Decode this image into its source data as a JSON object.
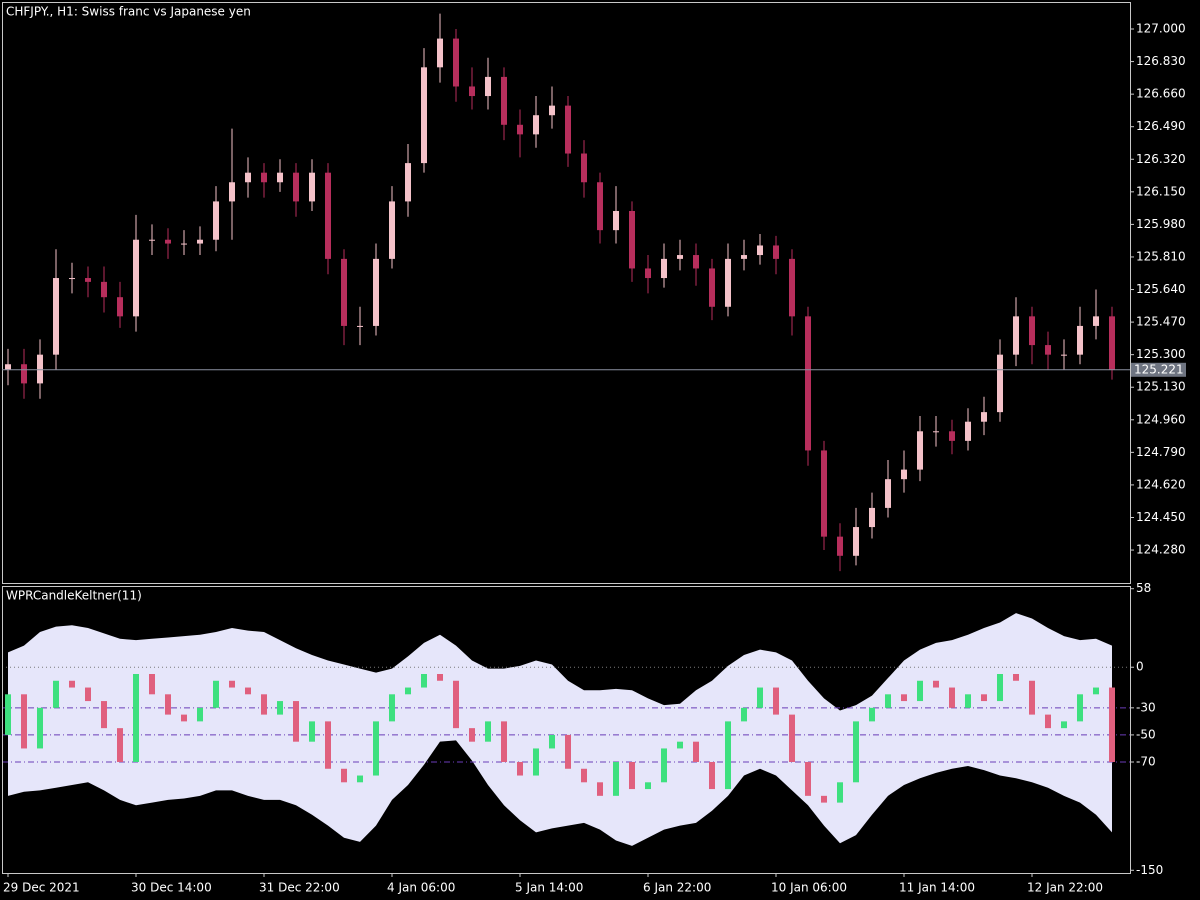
{
  "chart_data": [
    {
      "type": "candlestick",
      "title": "CHFJPY., H1:  Swiss franc vs Japanese yen",
      "up_color": "#f4c2c9",
      "down_color": "#b72e5c",
      "open": [
        125.22,
        125.25,
        125.15,
        125.3,
        125.7,
        125.7,
        125.68,
        125.6,
        125.5,
        125.9,
        125.9,
        125.88,
        125.88,
        125.9,
        126.1,
        126.2,
        126.25,
        126.2,
        126.25,
        126.1,
        126.25,
        125.8,
        125.45,
        125.45,
        125.8,
        126.1,
        126.3,
        126.8,
        126.95,
        126.7,
        126.65,
        126.75,
        126.5,
        126.45,
        126.55,
        126.6,
        126.35,
        126.2,
        125.95,
        126.05,
        125.75,
        125.7,
        125.8,
        125.82,
        125.75,
        125.55,
        125.8,
        125.82,
        125.87,
        125.8,
        125.5,
        124.8,
        124.35,
        124.25,
        124.4,
        124.5,
        124.65,
        124.7,
        124.9,
        124.9,
        124.85,
        124.95,
        125.0,
        125.3,
        125.5,
        125.35,
        125.3,
        125.3,
        125.45,
        125.5
      ],
      "high": [
        125.33,
        125.33,
        125.38,
        125.85,
        125.78,
        125.76,
        125.76,
        125.68,
        126.03,
        125.98,
        125.96,
        125.95,
        125.97,
        126.18,
        126.48,
        126.33,
        126.3,
        126.32,
        126.3,
        126.32,
        126.3,
        125.85,
        125.55,
        125.88,
        126.18,
        126.4,
        126.9,
        127.08,
        127.0,
        126.8,
        126.85,
        126.8,
        126.58,
        126.65,
        126.7,
        126.65,
        126.42,
        126.25,
        126.18,
        126.1,
        125.82,
        125.88,
        125.9,
        125.88,
        125.8,
        125.88,
        125.9,
        125.93,
        125.92,
        125.85,
        125.55,
        124.85,
        124.42,
        124.5,
        124.58,
        124.75,
        124.8,
        124.98,
        124.98,
        124.96,
        125.02,
        125.08,
        125.38,
        125.6,
        125.55,
        125.42,
        125.38,
        125.55,
        125.64,
        125.55
      ],
      "low": [
        125.14,
        125.07,
        125.07,
        125.22,
        125.62,
        125.6,
        125.52,
        125.44,
        125.42,
        125.82,
        125.8,
        125.82,
        125.82,
        125.84,
        125.9,
        126.12,
        126.12,
        126.15,
        126.02,
        126.05,
        125.72,
        125.35,
        125.35,
        125.4,
        125.75,
        126.02,
        126.25,
        126.72,
        126.62,
        126.58,
        126.58,
        126.42,
        126.33,
        126.38,
        126.48,
        126.28,
        126.12,
        125.88,
        125.88,
        125.68,
        125.62,
        125.65,
        125.74,
        125.66,
        125.48,
        125.5,
        125.74,
        125.77,
        125.72,
        125.4,
        124.72,
        124.28,
        124.17,
        124.2,
        124.34,
        124.45,
        124.58,
        124.64,
        124.82,
        124.78,
        124.8,
        124.88,
        124.95,
        125.24,
        125.25,
        125.22,
        125.22,
        125.25,
        125.38,
        125.17
      ],
      "close": [
        125.25,
        125.15,
        125.3,
        125.7,
        125.7,
        125.68,
        125.6,
        125.5,
        125.9,
        125.9,
        125.88,
        125.88,
        125.9,
        126.1,
        126.2,
        126.25,
        126.2,
        126.25,
        126.1,
        126.25,
        125.8,
        125.45,
        125.45,
        125.8,
        126.1,
        126.3,
        126.8,
        126.95,
        126.7,
        126.65,
        126.75,
        126.5,
        126.45,
        126.55,
        126.6,
        126.35,
        126.2,
        125.95,
        126.05,
        125.75,
        125.7,
        125.8,
        125.82,
        125.75,
        125.55,
        125.8,
        125.82,
        125.87,
        125.8,
        125.5,
        124.8,
        124.35,
        124.25,
        124.4,
        124.5,
        124.65,
        124.7,
        124.9,
        124.9,
        124.85,
        124.95,
        125.0,
        125.3,
        125.5,
        125.35,
        125.3,
        125.3,
        125.45,
        125.5,
        125.22
      ],
      "last_price": 125.221,
      "ylim": [
        124.108,
        127.141
      ],
      "yticks": [
        {
          "value": 127,
          "label": "127.000"
        },
        {
          "value": 126.83,
          "label": "126.830"
        },
        {
          "value": 126.66,
          "label": "126.660"
        },
        {
          "value": 126.49,
          "label": "126.490"
        },
        {
          "value": 126.32,
          "label": "126.320"
        },
        {
          "value": 126.15,
          "label": "126.150"
        },
        {
          "value": 125.98,
          "label": "125.980"
        },
        {
          "value": 125.81,
          "label": "125.810"
        },
        {
          "value": 125.64,
          "label": "125.640"
        },
        {
          "value": 125.47,
          "label": "125.470"
        },
        {
          "value": 125.3,
          "label": "125.300"
        },
        {
          "value": 125.13,
          "label": "125.130"
        },
        {
          "value": 124.96,
          "label": "124.960"
        },
        {
          "value": 124.79,
          "label": "124.790"
        },
        {
          "value": 124.62,
          "label": "124.620"
        },
        {
          "value": 124.45,
          "label": "124.450"
        },
        {
          "value": 124.28,
          "label": "124.280"
        }
      ],
      "xticks": [
        {
          "value": 0,
          "label": "29 Dec 2021"
        },
        {
          "value": 8,
          "label": "30 Dec 14:00"
        },
        {
          "value": 16,
          "label": "31 Dec 22:00"
        },
        {
          "value": 24,
          "label": "4 Jan 06:00"
        },
        {
          "value": 32,
          "label": "5 Jan 14:00"
        },
        {
          "value": 40,
          "label": "6 Jan 22:00"
        },
        {
          "value": 48,
          "label": "10 Jan 06:00"
        },
        {
          "value": 56,
          "label": "11 Jan 14:00"
        },
        {
          "value": 64,
          "label": "12 Jan 22:00"
        }
      ]
    },
    {
      "type": "candlestick",
      "title": "WPRCandleKeltner(11)",
      "up_color": "#3ee07f",
      "down_color": "#e0607e",
      "band_color": "#e6e6fa",
      "open": [
        -50,
        -20,
        -60,
        -30,
        -10,
        -15,
        -25,
        -45,
        -70,
        -5,
        -20,
        -35,
        -40,
        -30,
        -10,
        -15,
        -20,
        -35,
        -25,
        -55,
        -40,
        -75,
        -85,
        -80,
        -40,
        -20,
        -15,
        -5,
        -10,
        -45,
        -55,
        -40,
        -70,
        -80,
        -60,
        -50,
        -75,
        -85,
        -95,
        -70,
        -90,
        -85,
        -60,
        -55,
        -70,
        -90,
        -40,
        -30,
        -15,
        -35,
        -70,
        -95,
        -100,
        -85,
        -40,
        -30,
        -20,
        -25,
        -10,
        -15,
        -30,
        -20,
        -25,
        -5,
        -10,
        -35,
        -45,
        -40,
        -20,
        -15
      ],
      "close": [
        -20,
        -60,
        -30,
        -10,
        -15,
        -25,
        -45,
        -70,
        -5,
        -20,
        -35,
        -40,
        -30,
        -10,
        -15,
        -20,
        -35,
        -25,
        -55,
        -40,
        -75,
        -85,
        -80,
        -40,
        -20,
        -15,
        -5,
        -10,
        -45,
        -55,
        -40,
        -70,
        -80,
        -60,
        -50,
        -75,
        -85,
        -95,
        -70,
        -90,
        -85,
        -60,
        -55,
        -70,
        -90,
        -40,
        -30,
        -15,
        -35,
        -70,
        -95,
        -100,
        -85,
        -40,
        -30,
        -20,
        -25,
        -10,
        -15,
        -30,
        -20,
        -25,
        -5,
        -10,
        -35,
        -45,
        -40,
        -20,
        -15,
        -70
      ],
      "upper_band": [
        11,
        16,
        26,
        30,
        31,
        29,
        25,
        21,
        20,
        21,
        22,
        23,
        24,
        26,
        29,
        27,
        26,
        20,
        14,
        9,
        5,
        2,
        -1,
        -4,
        -1,
        8,
        18,
        24,
        16,
        5,
        -1,
        -1,
        1,
        5,
        2,
        -10,
        -17,
        -17,
        -16,
        -17,
        -23,
        -28,
        -27,
        -17,
        -10,
        1,
        9,
        13,
        11,
        5,
        -10,
        -23,
        -32,
        -28,
        -21,
        -8,
        5,
        13,
        18,
        20,
        24,
        29,
        33,
        40,
        36,
        29,
        23,
        20,
        21,
        16
      ],
      "lower_band": [
        -95,
        -92,
        -91,
        -89,
        -87,
        -85,
        -91,
        -98,
        -102,
        -100,
        -98,
        -97,
        -95,
        -91,
        -91,
        -95,
        -98,
        -98,
        -102,
        -109,
        -117,
        -126,
        -129,
        -117,
        -98,
        -87,
        -72,
        -55,
        -54,
        -69,
        -87,
        -102,
        -113,
        -122,
        -119,
        -117,
        -115,
        -120,
        -128,
        -132,
        -126,
        -120,
        -117,
        -115,
        -106,
        -95,
        -80,
        -75,
        -80,
        -91,
        -102,
        -117,
        -130,
        -124,
        -109,
        -95,
        -87,
        -82,
        -78,
        -75,
        -73,
        -76,
        -80,
        -82,
        -85,
        -89,
        -95,
        -100,
        -109,
        -122
      ],
      "levels": [
        0,
        -30,
        -50,
        -70
      ],
      "ylim": [
        -152,
        60
      ],
      "yticks": [
        58,
        0,
        -30,
        -50,
        -70,
        -150
      ]
    }
  ]
}
